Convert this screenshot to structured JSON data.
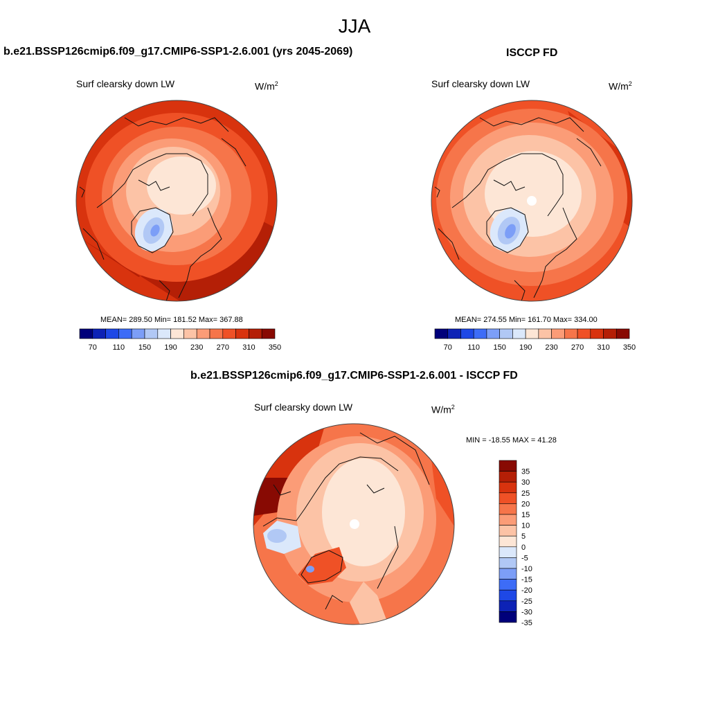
{
  "page": {
    "title": "JJA"
  },
  "colors": {
    "scale": [
      "#00007a",
      "#0d22b5",
      "#1e48e6",
      "#3d6cf7",
      "#7c9ef7",
      "#b1c8f5",
      "#dbe8fb",
      "#fde6d6",
      "#fcc3a6",
      "#fb9c77",
      "#f6754a",
      "#ef5126",
      "#d8330e",
      "#b41f06",
      "#880a03"
    ],
    "land_line": "#111111"
  },
  "panels": {
    "model": {
      "title": "b.e21.BSSP126cmip6.f09_g17.CMIP6-SSP1-2.6.001 (yrs 2045-2069)",
      "variable": "Surf clearsky down LW",
      "units_base": "W/m",
      "units_sup": "2",
      "stats": "MEAN= 289.50  Min= 181.52  Max= 367.88"
    },
    "obs": {
      "title": "ISCCP FD",
      "variable": "Surf clearsky down LW",
      "units_base": "W/m",
      "units_sup": "2",
      "stats": "MEAN= 274.55  Min= 161.70  Max= 334.00"
    },
    "diff": {
      "title": "b.e21.BSSP126cmip6.f09_g17.CMIP6-SSP1-2.6.001 - ISCCP FD",
      "variable": "Surf clearsky down LW",
      "units_base": "W/m",
      "units_sup": "2",
      "stats": "MIN = -18.55 MAX =  41.28"
    }
  },
  "chart_data": [
    {
      "type": "heatmap",
      "projection": "polar-stereographic",
      "panel": "model",
      "title": "b.e21.BSSP126cmip6.f09_g17.CMIP6-SSP1-2.6.001 (yrs 2045-2069)",
      "variable": "Surf clearsky down LW",
      "units": "W/m2",
      "mean": 289.5,
      "min": 181.52,
      "max": 367.88,
      "colorbar": {
        "orientation": "horizontal",
        "levels": [
          70,
          90,
          110,
          130,
          150,
          170,
          190,
          210,
          230,
          250,
          270,
          290,
          310,
          330,
          350
        ],
        "tick_labels": [
          "70",
          "110",
          "150",
          "190",
          "230",
          "270",
          "310",
          "350"
        ]
      }
    },
    {
      "type": "heatmap",
      "projection": "polar-stereographic",
      "panel": "obs",
      "title": "ISCCP FD",
      "variable": "Surf clearsky down LW",
      "units": "W/m2",
      "mean": 274.55,
      "min": 161.7,
      "max": 334.0,
      "colorbar": {
        "orientation": "horizontal",
        "levels": [
          70,
          90,
          110,
          130,
          150,
          170,
          190,
          210,
          230,
          250,
          270,
          290,
          310,
          330,
          350
        ],
        "tick_labels": [
          "70",
          "110",
          "150",
          "190",
          "230",
          "270",
          "310",
          "350"
        ]
      }
    },
    {
      "type": "heatmap",
      "projection": "polar-stereographic",
      "panel": "diff",
      "title": "b.e21.BSSP126cmip6.f09_g17.CMIP6-SSP1-2.6.001 - ISCCP FD",
      "variable": "Surf clearsky down LW",
      "units": "W/m2",
      "min": -18.55,
      "max": 41.28,
      "colorbar": {
        "orientation": "vertical",
        "levels": [
          -35,
          -30,
          -25,
          -20,
          -15,
          -10,
          -5,
          0,
          5,
          10,
          15,
          20,
          25,
          30,
          35
        ],
        "tick_labels": [
          "35",
          "30",
          "25",
          "20",
          "15",
          "10",
          "5",
          "0",
          "-5",
          "-10",
          "-15",
          "-20",
          "-25",
          "-30",
          "-35"
        ]
      }
    }
  ]
}
